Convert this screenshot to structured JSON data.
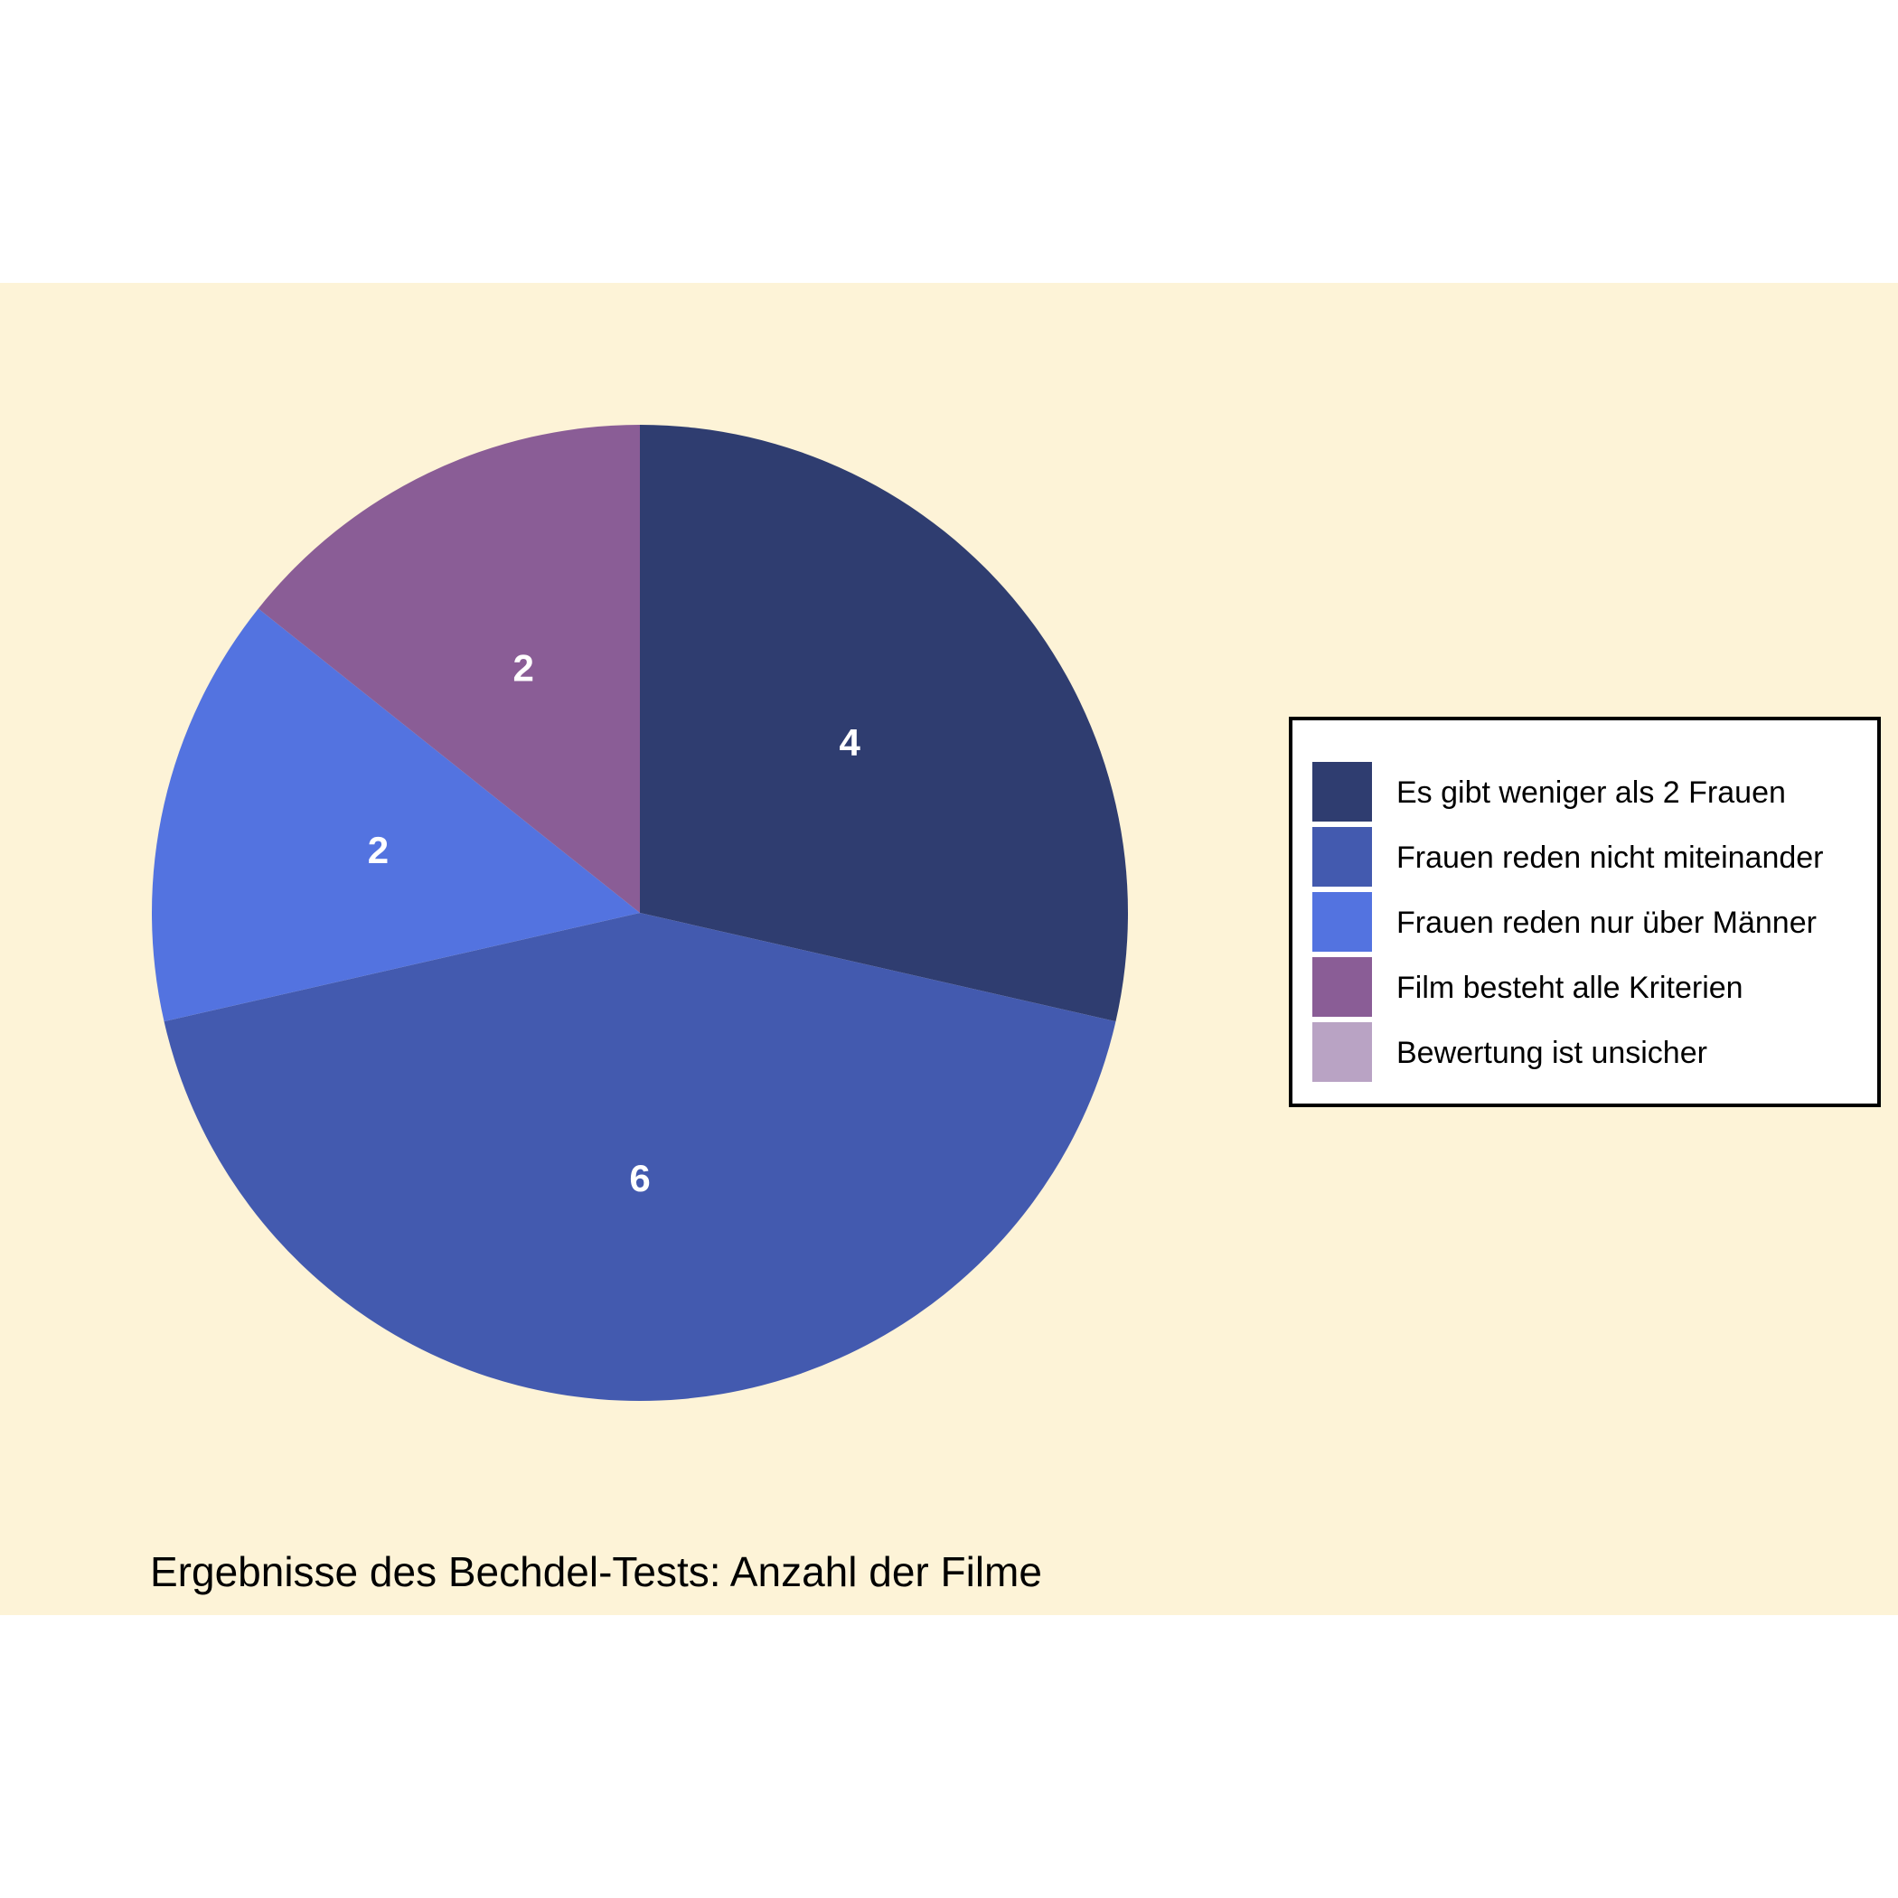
{
  "chart_data": {
    "type": "pie",
    "categories": [
      "Es gibt weniger als 2 Frauen",
      "Frauen reden nicht miteinander",
      "Frauen reden nur über Männer",
      "Film besteht alle Kriterien",
      "Bewertung ist unsicher"
    ],
    "values": [
      4,
      6,
      2,
      2,
      0
    ],
    "colors": [
      "#2f3d70",
      "#435aaf",
      "#5373e0",
      "#8a5d96",
      "#b9a3c4"
    ],
    "caption": "Ergebnisse des Bechdel-Tests: Anzahl der Filme",
    "legend_position": "right",
    "background": "#fdf3d7",
    "label_color": "#ffffff"
  }
}
